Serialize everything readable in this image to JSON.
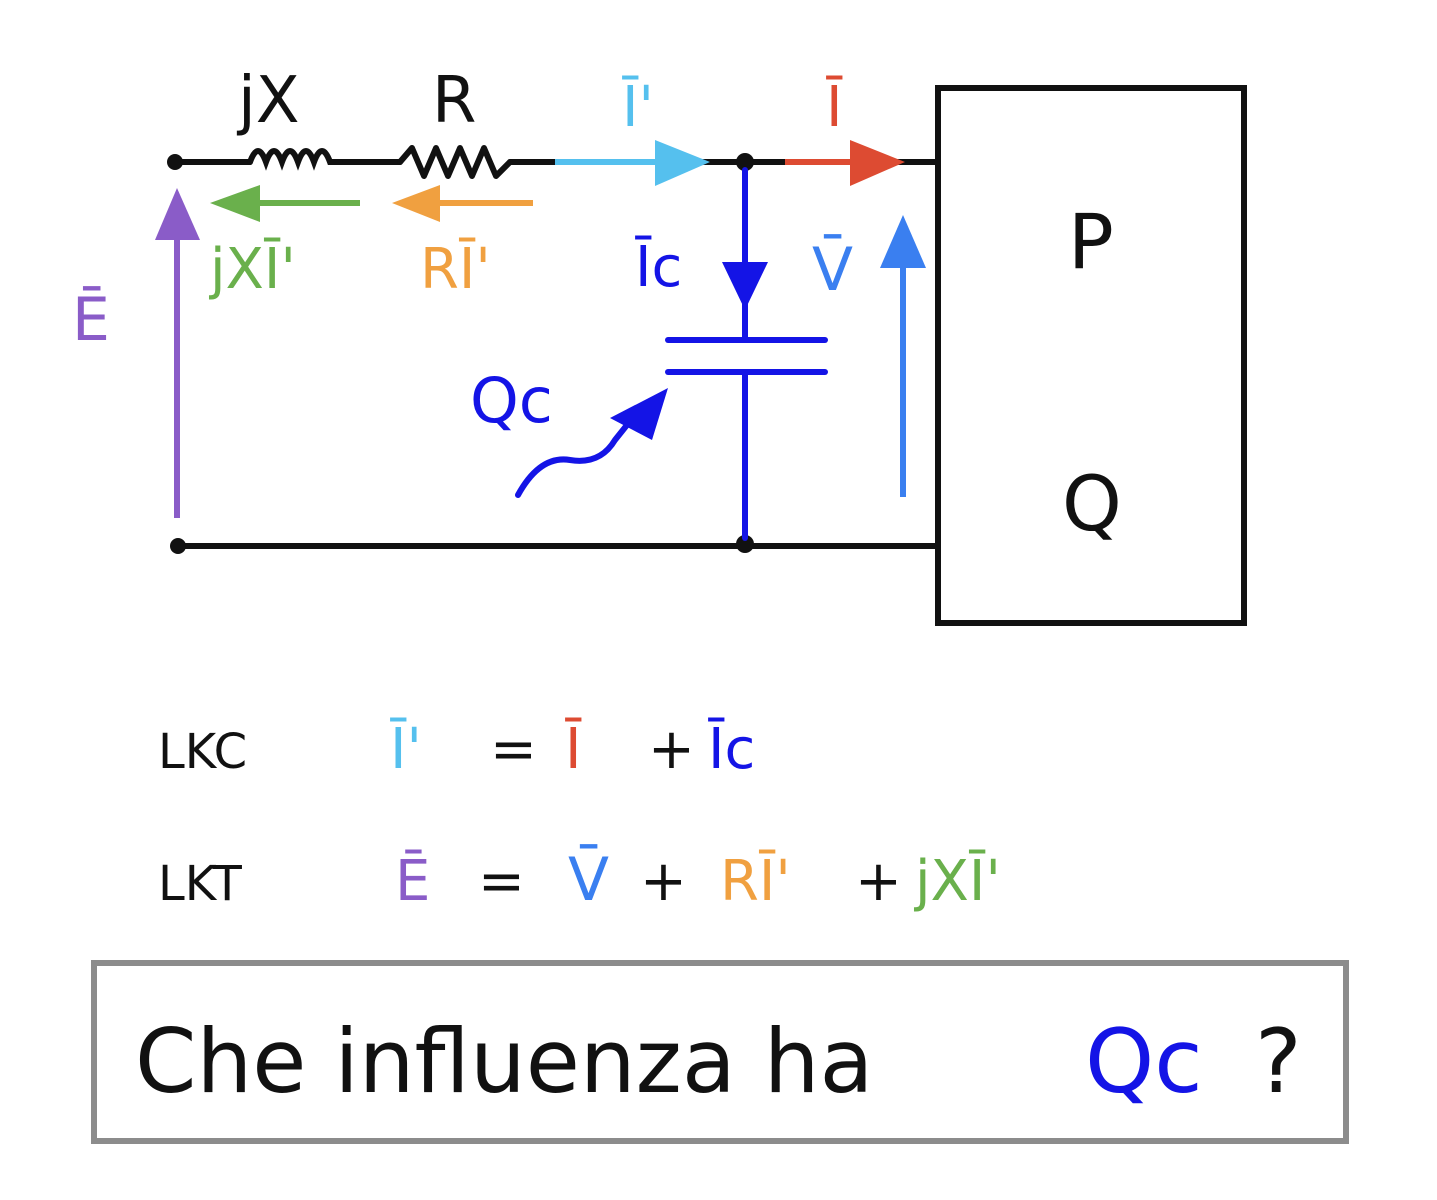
{
  "colors": {
    "black": "#111111",
    "purple": "#8a5cc8",
    "green": "#6ab04c",
    "orange": "#f0a040",
    "lightblue": "#55c0ee",
    "red": "#dd4b32",
    "blue": "#1414e6",
    "midblue": "#3a7ff0",
    "gray": "#8c8c8c"
  },
  "circuit": {
    "inductor_label": "jX",
    "resistor_label": "R",
    "current_main_label": "Ī'",
    "current_load_label": "Ī",
    "emf_label": "Ē",
    "inductor_drop_label": "jXĪ'",
    "resistor_drop_label": "RĪ'",
    "capacitor_current_label": "Īc",
    "voltage_label": "V̄",
    "capacitor_reactive_label": "Qc"
  },
  "load": {
    "p_label": "P",
    "q_label": "Q"
  },
  "equations": {
    "lkc": {
      "name": "LKC",
      "lhs": "Ī'",
      "eq": "=",
      "t1": "Ī",
      "plus1": "+",
      "t2": "Īc"
    },
    "lkt": {
      "name": "LKT",
      "lhs": "Ē",
      "eq": "=",
      "t1": "V̄",
      "plus1": "+",
      "t2": "RĪ'",
      "plus2": "+",
      "t3": "jXĪ'"
    }
  },
  "question": {
    "text": "Che influenza ha",
    "highlight": "Qc",
    "mark": "?"
  }
}
